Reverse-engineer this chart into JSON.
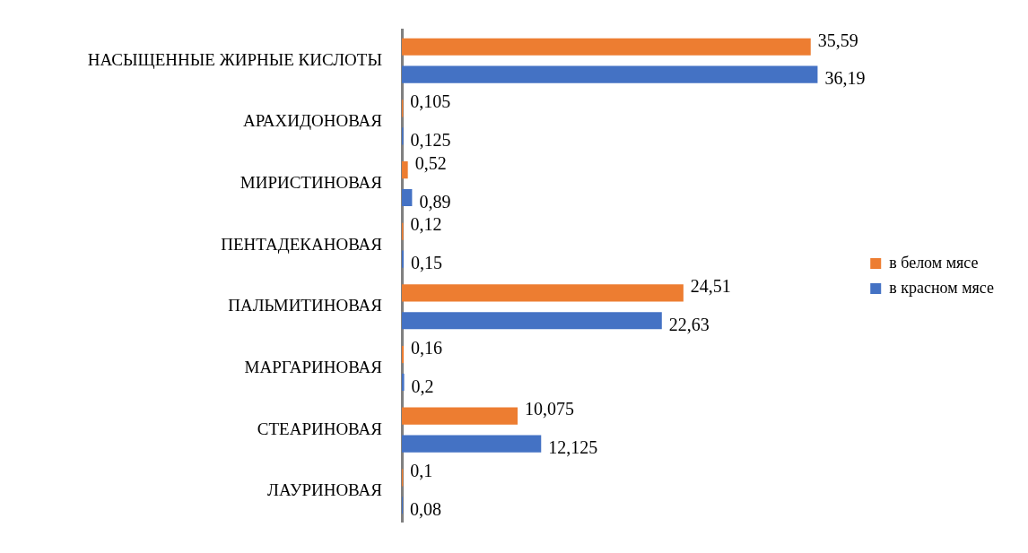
{
  "chart_data": {
    "type": "bar",
    "orientation": "horizontal",
    "categories": [
      "НАСЫЩЕННЫЕ ЖИРНЫЕ КИСЛОТЫ",
      "АРАХИДОНОВАЯ",
      "МИРИСТИНОВАЯ",
      "ПЕНТАДЕКАНОВАЯ",
      "ПАЛЬМИТИНОВАЯ",
      "МАРГАРИНОВАЯ",
      "СТЕАРИНОВАЯ",
      "ЛАУРИНОВАЯ"
    ],
    "series": [
      {
        "name": "в белом мясе",
        "color": "#ed7d31",
        "values": [
          35.59,
          0.105,
          0.52,
          0.12,
          24.51,
          0.16,
          10.075,
          0.1
        ],
        "value_labels": [
          "35,59",
          "0,105",
          "0,52",
          "0,12",
          "24,51",
          "0,16",
          "10,075",
          "0,1"
        ]
      },
      {
        "name": "в красном мясе",
        "color": "#4472c4",
        "values": [
          36.19,
          0.125,
          0.89,
          0.15,
          22.63,
          0.2,
          12.125,
          0.08
        ],
        "value_labels": [
          "36,19",
          "0,125",
          "0,89",
          "0,15",
          "22,63",
          "0,2",
          "12,125",
          "0,08"
        ]
      }
    ],
    "legend": "right",
    "grid": false
  }
}
